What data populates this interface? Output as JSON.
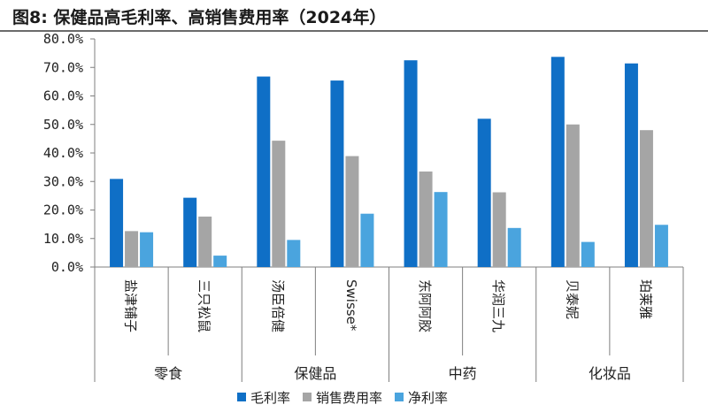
{
  "title": "图8: 保健品高毛利率、高销售费用率（2024年）",
  "chart_data": {
    "type": "bar",
    "title": "图8: 保健品高毛利率、高销售费用率（2024年）",
    "categories": [
      "盐津铺子",
      "三只松鼠",
      "汤臣倍健",
      "Swisse*",
      "东阿阿胶",
      "华润三九",
      "贝泰妮",
      "珀莱雅"
    ],
    "groups": [
      {
        "label": "零食",
        "members": [
          "盐津铺子",
          "三只松鼠"
        ]
      },
      {
        "label": "保健品",
        "members": [
          "汤臣倍健",
          "Swisse*"
        ]
      },
      {
        "label": "中药",
        "members": [
          "东阿阿胶",
          "华润三九"
        ]
      },
      {
        "label": "化妆品",
        "members": [
          "贝泰妮",
          "珀莱雅"
        ]
      }
    ],
    "series": [
      {
        "name": "毛利率",
        "color": "#0f6fc6",
        "values": [
          30.9,
          24.3,
          66.8,
          65.4,
          72.5,
          52.0,
          73.7,
          71.4
        ]
      },
      {
        "name": "销售费用率",
        "color": "#a5a5a5",
        "values": [
          12.6,
          17.7,
          44.3,
          38.9,
          33.5,
          26.2,
          50.0,
          48.0
        ]
      },
      {
        "name": "净利率",
        "color": "#4aa4de",
        "values": [
          12.2,
          4.0,
          9.5,
          18.7,
          26.3,
          13.7,
          8.8,
          14.8
        ]
      }
    ],
    "ylim": [
      0,
      80
    ],
    "yticks": [
      "0.0%",
      "10.0%",
      "20.0%",
      "30.0%",
      "40.0%",
      "50.0%",
      "60.0%",
      "70.0%",
      "80.0%"
    ],
    "legend_position": "bottom",
    "grid": false
  }
}
